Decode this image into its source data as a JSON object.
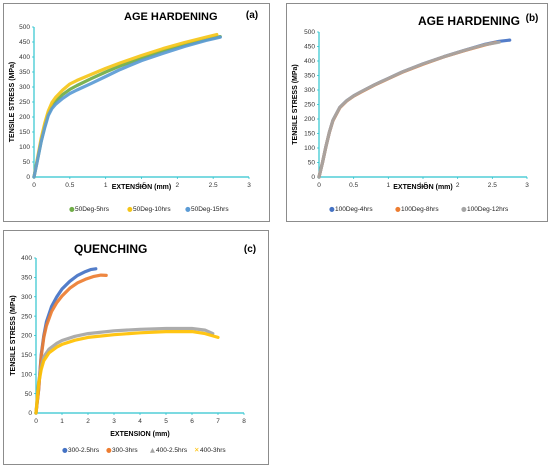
{
  "chart_data": [
    {
      "type": "line",
      "panel": "(a)",
      "title": "AGE HARDENING",
      "xlabel": "EXTENSION (mm)",
      "ylabel": "TENSILE STRESS (MPa)",
      "xlim": [
        0,
        3
      ],
      "ylim": [
        0,
        500
      ],
      "xticks": [
        0,
        0.5,
        1,
        1.5,
        2,
        2.5,
        3
      ],
      "yticks": [
        0,
        50,
        100,
        150,
        200,
        250,
        300,
        350,
        400,
        450,
        500
      ],
      "legend_position": "bottom",
      "series": [
        {
          "name": "50Deg-5hrs",
          "color": "#70ad47",
          "x": [
            0,
            0.05,
            0.1,
            0.15,
            0.2,
            0.25,
            0.3,
            0.4,
            0.5,
            0.6,
            0.8,
            1.0,
            1.2,
            1.5,
            1.8,
            2.1,
            2.4,
            2.6
          ],
          "y": [
            0,
            60,
            120,
            170,
            210,
            235,
            252,
            275,
            292,
            305,
            328,
            350,
            370,
            395,
            420,
            440,
            458,
            468
          ]
        },
        {
          "name": "50Deg-10hrs",
          "color": "#f5c518",
          "x": [
            0,
            0.05,
            0.1,
            0.15,
            0.2,
            0.25,
            0.3,
            0.4,
            0.5,
            0.6,
            0.8,
            1.0,
            1.2,
            1.5,
            1.8,
            2.1,
            2.4,
            2.55
          ],
          "y": [
            0,
            65,
            130,
            180,
            220,
            248,
            265,
            290,
            310,
            322,
            342,
            362,
            380,
            405,
            428,
            448,
            466,
            475
          ]
        },
        {
          "name": "50Deg-15hrs",
          "color": "#5b9bd5",
          "x": [
            0,
            0.05,
            0.1,
            0.15,
            0.2,
            0.25,
            0.3,
            0.4,
            0.5,
            0.6,
            0.8,
            1.0,
            1.2,
            1.5,
            1.8,
            2.1,
            2.4,
            2.6
          ],
          "y": [
            0,
            58,
            118,
            165,
            205,
            228,
            242,
            262,
            278,
            290,
            312,
            335,
            358,
            388,
            412,
            435,
            455,
            466
          ]
        }
      ]
    },
    {
      "type": "line",
      "panel": "(b)",
      "title": "AGE HARDENING",
      "xlabel": "EXTENSION (mm)",
      "ylabel": "TENSILE STRESS (MPa)",
      "xlim": [
        0,
        3
      ],
      "ylim": [
        0,
        500
      ],
      "xticks": [
        0,
        0.5,
        1,
        1.5,
        2,
        2.5,
        3
      ],
      "yticks": [
        0,
        50,
        100,
        150,
        200,
        250,
        300,
        350,
        400,
        450,
        500
      ],
      "legend_position": "bottom",
      "series": [
        {
          "name": "100Deg-4hrs",
          "color": "#4472c4",
          "x": [
            0,
            0.05,
            0.1,
            0.15,
            0.2,
            0.3,
            0.4,
            0.5,
            0.6,
            0.8,
            1.0,
            1.2,
            1.5,
            1.8,
            2.1,
            2.4,
            2.6,
            2.75
          ],
          "y": [
            0,
            50,
            105,
            155,
            195,
            240,
            263,
            280,
            293,
            318,
            340,
            362,
            390,
            415,
            437,
            458,
            468,
            472
          ]
        },
        {
          "name": "100Deg-8hrs",
          "color": "#ed7d31",
          "x": [
            0,
            0.05,
            0.1,
            0.15,
            0.2,
            0.3,
            0.4,
            0.5,
            0.6,
            0.8,
            1.0,
            1.2,
            1.5,
            1.8,
            2.1,
            2.4,
            2.55
          ],
          "y": [
            0,
            50,
            104,
            154,
            194,
            239,
            262,
            279,
            292,
            317,
            339,
            361,
            389,
            414,
            436,
            456,
            464
          ]
        },
        {
          "name": "100Deg-12hrs",
          "color": "#a5a5a5",
          "x": [
            0,
            0.05,
            0.1,
            0.15,
            0.2,
            0.3,
            0.4,
            0.5,
            0.6,
            0.8,
            1.0,
            1.2,
            1.5,
            1.8,
            2.1,
            2.4,
            2.6
          ],
          "y": [
            0,
            50,
            105,
            155,
            195,
            240,
            263,
            280,
            293,
            318,
            340,
            362,
            390,
            415,
            437,
            457,
            465
          ]
        }
      ]
    },
    {
      "type": "line",
      "panel": "(c)",
      "title": "QUENCHING",
      "xlabel": "EXTENSION (mm)",
      "ylabel": "TENSILE STRESS (MPa)",
      "xlim": [
        0,
        8
      ],
      "ylim": [
        0,
        400
      ],
      "xticks": [
        0,
        1,
        2,
        3,
        4,
        5,
        6,
        7,
        8
      ],
      "yticks": [
        0,
        50,
        100,
        150,
        200,
        250,
        300,
        350,
        400
      ],
      "legend_position": "bottom",
      "series": [
        {
          "name": "300-2.5hrs",
          "color": "#4472c4",
          "x": [
            0,
            0.1,
            0.2,
            0.3,
            0.4,
            0.6,
            0.8,
            1.0,
            1.3,
            1.6,
            1.9,
            2.1,
            2.3
          ],
          "y": [
            0,
            60,
            150,
            200,
            235,
            275,
            300,
            320,
            340,
            355,
            365,
            370,
            372
          ]
        },
        {
          "name": "300-3hrs",
          "color": "#ed7d31",
          "x": [
            0,
            0.1,
            0.2,
            0.3,
            0.4,
            0.6,
            0.8,
            1.0,
            1.3,
            1.6,
            1.9,
            2.2,
            2.5,
            2.7
          ],
          "y": [
            0,
            58,
            145,
            195,
            225,
            262,
            285,
            302,
            322,
            336,
            345,
            352,
            356,
            355
          ]
        },
        {
          "name": "400-2.5hrs",
          "color": "#a5a5a5",
          "x": [
            0,
            0.1,
            0.2,
            0.3,
            0.5,
            0.8,
            1.0,
            1.5,
            2.0,
            3.0,
            4.0,
            5.0,
            6.0,
            6.5,
            6.8
          ],
          "y": [
            0,
            80,
            120,
            145,
            165,
            180,
            187,
            198,
            205,
            212,
            216,
            218,
            218,
            214,
            205
          ]
        },
        {
          "name": "400-3hrs",
          "color": "#ffc000",
          "x": [
            0,
            0.1,
            0.2,
            0.3,
            0.5,
            0.8,
            1.0,
            1.5,
            2.0,
            3.0,
            4.0,
            5.0,
            6.0,
            6.5,
            7.0
          ],
          "y": [
            0,
            75,
            112,
            135,
            155,
            170,
            177,
            188,
            195,
            202,
            207,
            210,
            210,
            205,
            195
          ]
        }
      ]
    }
  ]
}
